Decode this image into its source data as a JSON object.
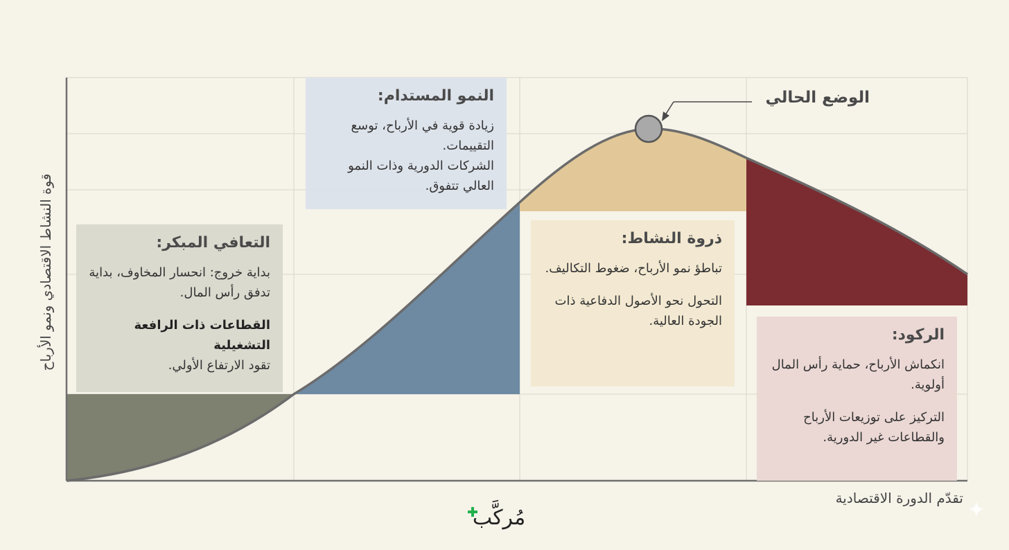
{
  "axes": {
    "y_label": "قوة النشاط الاقتصادي ونمو الأرباح",
    "x_label": "تقدّم الدورة الاقتصادية"
  },
  "current_position": {
    "label": "الوضع الحالي"
  },
  "phases": {
    "early_recovery": {
      "title": "التعافي المبكر:",
      "line1": "بداية خروج: انحسار المخاوف، بداية تدفق رأس المال.",
      "bold": "القطاعات ذات الرافعة التشغيلية",
      "line2": "تقود الارتفاع الأولي.",
      "color": "#7e8070"
    },
    "sustained_growth": {
      "title": "النمو المستدام:",
      "line1": "زيادة قوية في الأرباح، توسع التقييمات.",
      "line2": "الشركات الدورية وذات النمو العالي تتفوق.",
      "color": "#6e8aa3"
    },
    "peak": {
      "title": "ذروة النشاط:",
      "line1": "تباطؤ نمو الأرباح، ضغوط التكاليف.",
      "line2": "التحول نحو الأصول الدفاعية ذات الجودة العالية.",
      "color": "#e2c898"
    },
    "recession": {
      "title": "الركود:",
      "line1": "انكماش الأرباح، حماية رأس المال أولوية.",
      "line2": "التركيز على توزيعات الأرباح والقطاعات غير الدورية.",
      "color": "#7a2c30"
    }
  },
  "logo": {
    "text": "مُركَّب",
    "plus_color": "#22b14c",
    "icon": "plus-icon"
  },
  "colors": {
    "background": "#f6f3e9",
    "curve": "#6b6b6b",
    "grid": "#dedad0",
    "marker": "#a9a9a9"
  }
}
